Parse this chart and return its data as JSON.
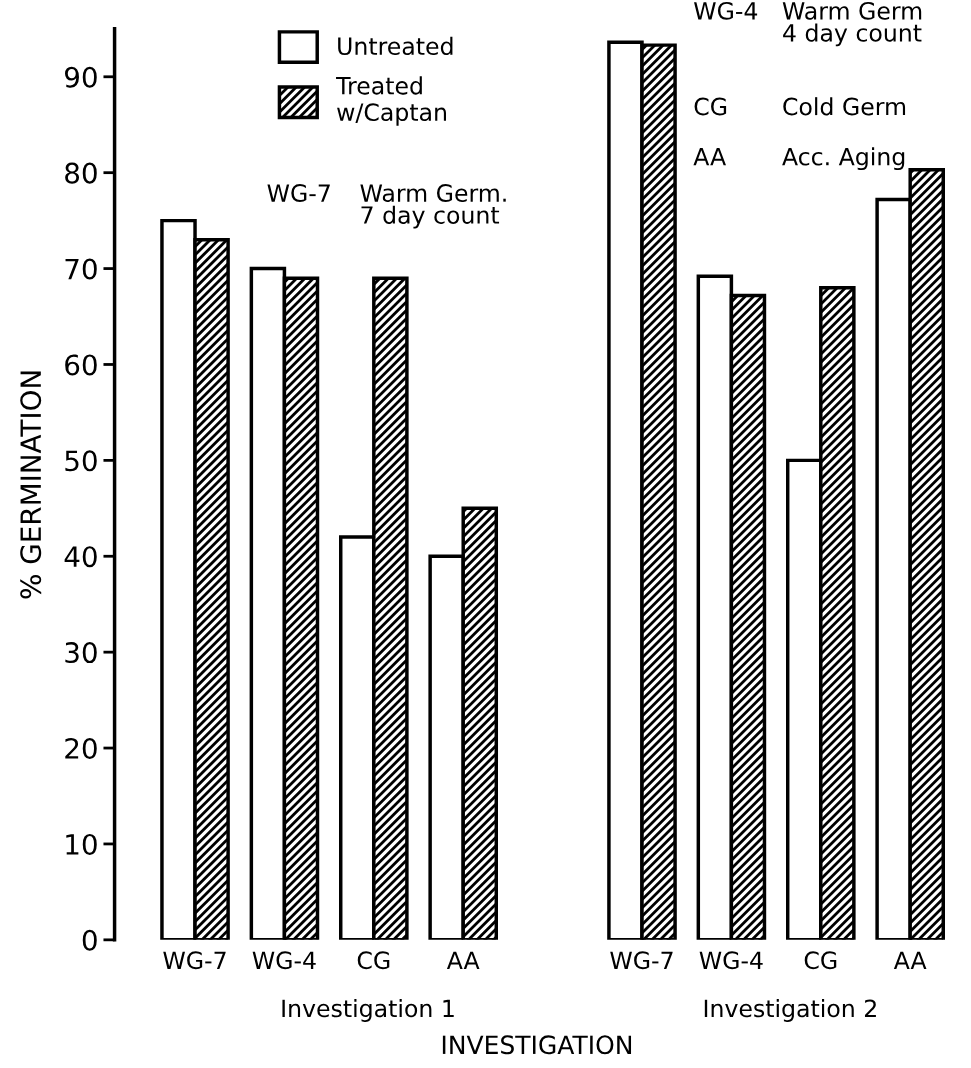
{
  "chart_data": {
    "type": "bar",
    "categories": [
      "WG-7",
      "WG-4",
      "CG",
      "AA",
      null,
      "WG-7",
      "WG-4",
      "CG",
      "AA"
    ],
    "series": [
      {
        "name": "Untreated",
        "color": "#ffffff",
        "values": [
          75,
          70,
          42,
          40,
          null,
          93.6,
          69.2,
          50,
          77.2
        ]
      },
      {
        "name": "Treated\nw/Captan",
        "color": "#000000",
        "values": [
          73,
          69,
          69,
          45,
          null,
          93.3,
          67.2,
          68,
          80.3
        ]
      }
    ],
    "xlabel": "INVESTIGATION",
    "ylabel": "% GERMINATION",
    "ylim": [
      0,
      95
    ],
    "yticks": [
      0,
      10,
      20,
      30,
      40,
      50,
      60,
      70,
      80,
      90
    ],
    "annotations": [
      "Investigation 1",
      "Investigation 2",
      "WG-7",
      "Warm Germ.\n7 day count",
      "WG-4",
      "Warm Germ\n4 day count",
      "CG",
      "Cold Germ",
      "AA",
      "Acc. Aging"
    ],
    "legend": "top left",
    "grid": false
  }
}
